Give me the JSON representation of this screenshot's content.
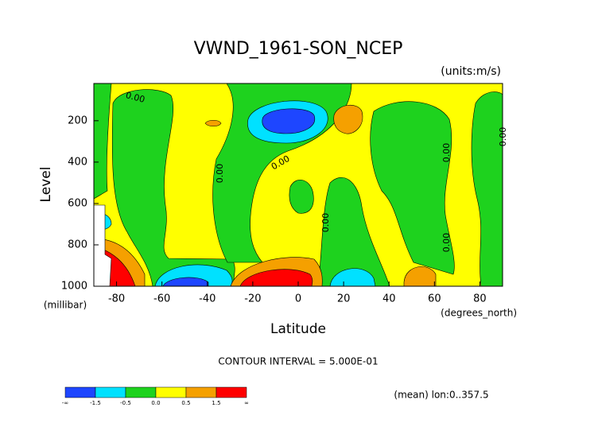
{
  "chart_data": {
    "type": "contour",
    "title": "VWND_1961-SON_NCEP",
    "units_label": "(units:m/s)",
    "x_label": "Latitude",
    "x_units": "(degrees_north)",
    "y_label": "Level",
    "y_units": "(millibar)",
    "xlim": [
      -90,
      90
    ],
    "xticks": [
      -80,
      -60,
      -40,
      -20,
      0,
      20,
      40,
      60,
      80
    ],
    "ylim": [
      1000,
      20
    ],
    "yticks": [
      200,
      400,
      600,
      800,
      1000
    ],
    "contour_labels": [
      "0.00",
      "0.00",
      "0.00",
      "0.00",
      "0.00",
      "0.00",
      "0.00"
    ],
    "contour_interval_text": "CONTOUR INTERVAL = 5.000E-01",
    "colorbar": {
      "colors": [
        "#1e46ff",
        "#00e1ff",
        "#1ed21e",
        "#ffff00",
        "#f5a000",
        "#ff0000"
      ],
      "labels": [
        "-∞",
        "-1.5",
        "-0.5",
        "0.0",
        "0.5",
        "1.5",
        "∞"
      ]
    },
    "footer": "(mean) lon:0..357.5"
  }
}
